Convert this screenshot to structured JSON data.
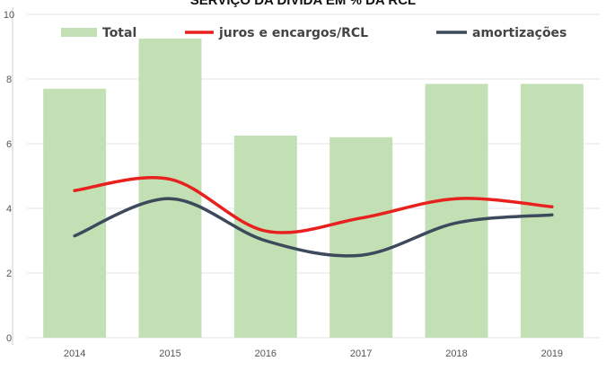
{
  "chart_data": {
    "type": "bar",
    "title": "SERVIÇO DA DÍVIDA EM % DA RCL",
    "categories": [
      "2014",
      "2015",
      "2016",
      "2017",
      "2018",
      "2019"
    ],
    "ylim": [
      0,
      10
    ],
    "yticks": [
      "0",
      "2",
      "4",
      "6",
      "8",
      "10"
    ],
    "grid": true,
    "legend_position": "top",
    "series": [
      {
        "name": "Total",
        "kind": "bar",
        "color": "#c3e0b5",
        "values": [
          7.7,
          9.25,
          6.25,
          6.2,
          7.85,
          7.85
        ]
      },
      {
        "name": "juros e encargos/RCL",
        "kind": "line",
        "color": "#e8211e",
        "values": [
          4.55,
          4.9,
          3.3,
          3.7,
          4.3,
          4.05
        ]
      },
      {
        "name": "amortizações",
        "kind": "line",
        "color": "#3d4a5c",
        "values": [
          3.15,
          4.3,
          3.0,
          2.55,
          3.55,
          3.8
        ]
      }
    ]
  }
}
